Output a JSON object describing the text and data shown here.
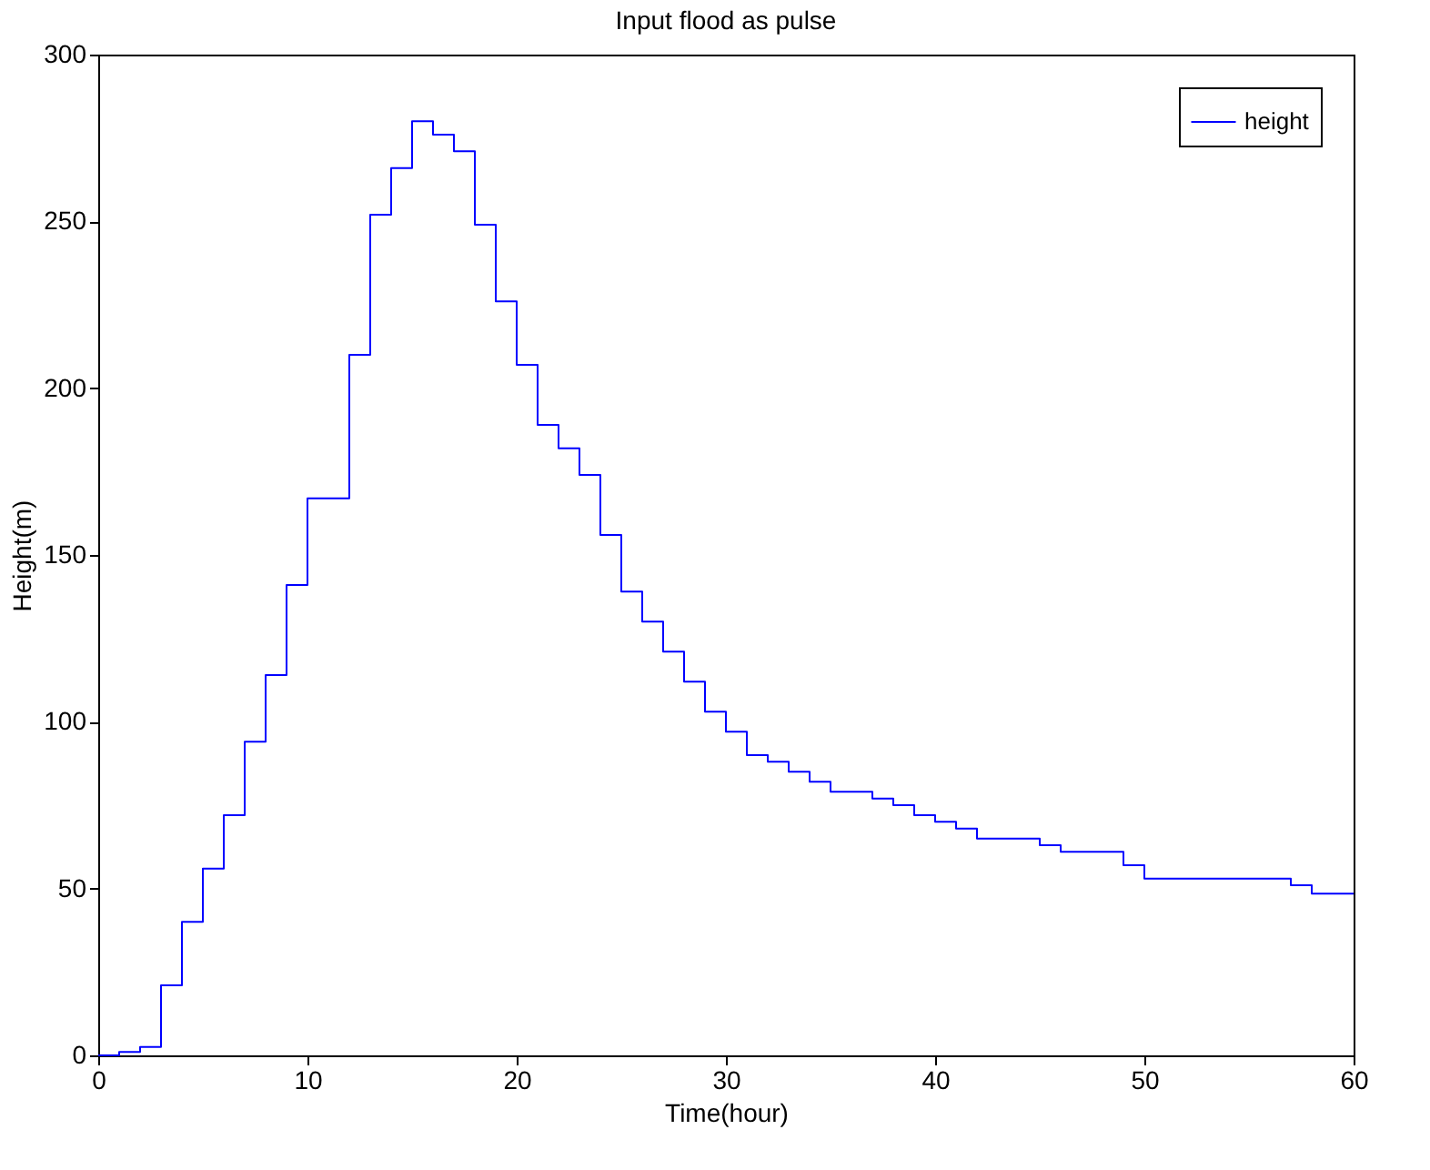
{
  "chart_data": {
    "type": "step",
    "title": "Input flood as pulse",
    "xlabel": "Time(hour)",
    "ylabel": "Height(m)",
    "xlim": [
      0,
      60
    ],
    "ylim": [
      0,
      300
    ],
    "xticks": [
      0,
      10,
      20,
      30,
      40,
      50,
      60
    ],
    "yticks": [
      0,
      50,
      100,
      150,
      200,
      250,
      300
    ],
    "grid": false,
    "legend": "top right",
    "line_style": "solid",
    "marker": "none",
    "series": [
      {
        "name": "height",
        "color": "#0000ff",
        "x": [
          0,
          1,
          2,
          3,
          4,
          5,
          6,
          7,
          8,
          9,
          10,
          12,
          13,
          14,
          15,
          16,
          17,
          18,
          19,
          20,
          21,
          22,
          23,
          24,
          25,
          26,
          27,
          28,
          29,
          30,
          31,
          32,
          33,
          34,
          35,
          37,
          38,
          39,
          40,
          41,
          42,
          45,
          46,
          49,
          50,
          57,
          58,
          60
        ],
        "values": [
          0,
          1,
          2.5,
          21,
          40,
          56,
          72,
          94,
          114,
          141,
          167,
          210,
          252,
          266,
          280,
          276,
          271,
          249,
          226,
          207,
          189,
          182,
          174,
          156,
          139,
          130,
          121,
          112,
          103,
          97,
          90,
          88,
          85,
          82,
          79,
          77,
          75,
          72,
          70,
          68,
          65,
          63,
          61,
          57,
          53,
          51,
          48.5,
          48.5
        ]
      }
    ]
  }
}
